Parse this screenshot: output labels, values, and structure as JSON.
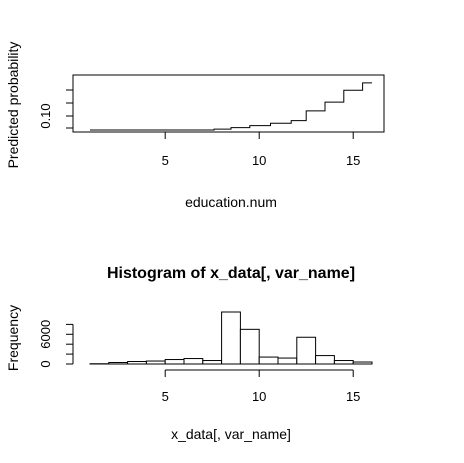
{
  "chart_data": [
    {
      "type": "line",
      "step": true,
      "title": "",
      "xlabel": "education.num",
      "ylabel": "Predicted probability",
      "xlim": [
        1,
        16
      ],
      "ylim": [
        0.065,
        0.28
      ],
      "xticks": [
        5,
        10,
        15
      ],
      "yticks": [
        0.1
      ],
      "ytick_labels": [
        "0.10"
      ],
      "minor_yticks": [
        0.09,
        0.1,
        0.11,
        0.12
      ],
      "x": [
        1,
        2,
        3,
        4,
        5,
        6,
        7,
        8,
        9,
        10,
        11,
        12,
        13,
        14,
        15,
        16
      ],
      "y": [
        0.07,
        0.07,
        0.07,
        0.07,
        0.07,
        0.07,
        0.07,
        0.07,
        0.08,
        0.09,
        0.095,
        0.105,
        0.135,
        0.17,
        0.21,
        0.24
      ],
      "breaks": [
        1,
        7.6,
        8.5,
        9.5,
        10.6,
        11.7,
        12.5,
        13.5,
        14.5,
        15.5,
        16
      ],
      "levels": [
        0.07,
        0.073,
        0.078,
        0.085,
        0.093,
        0.102,
        0.135,
        0.165,
        0.205,
        0.23
      ],
      "grid": false
    },
    {
      "type": "bar",
      "histogram": true,
      "title": "Histogram of x_data[, var_name]",
      "xlabel": "x_data[, var_name]",
      "ylabel": "Frequency",
      "xlim": [
        0,
        16.5
      ],
      "ylim": [
        0,
        11000
      ],
      "xticks": [
        5,
        10,
        15
      ],
      "yticks": [
        0,
        6000
      ],
      "minor_yticks": [
        2000,
        4000,
        8000
      ],
      "bin_edges": [
        1,
        2,
        3,
        4,
        5,
        6,
        7,
        8,
        9,
        10,
        11,
        12,
        13,
        14,
        15,
        16
      ],
      "values": [
        50,
        300,
        500,
        600,
        900,
        1100,
        700,
        10500,
        7000,
        1400,
        1200,
        5400,
        1700,
        700,
        400
      ],
      "grid": false
    }
  ]
}
